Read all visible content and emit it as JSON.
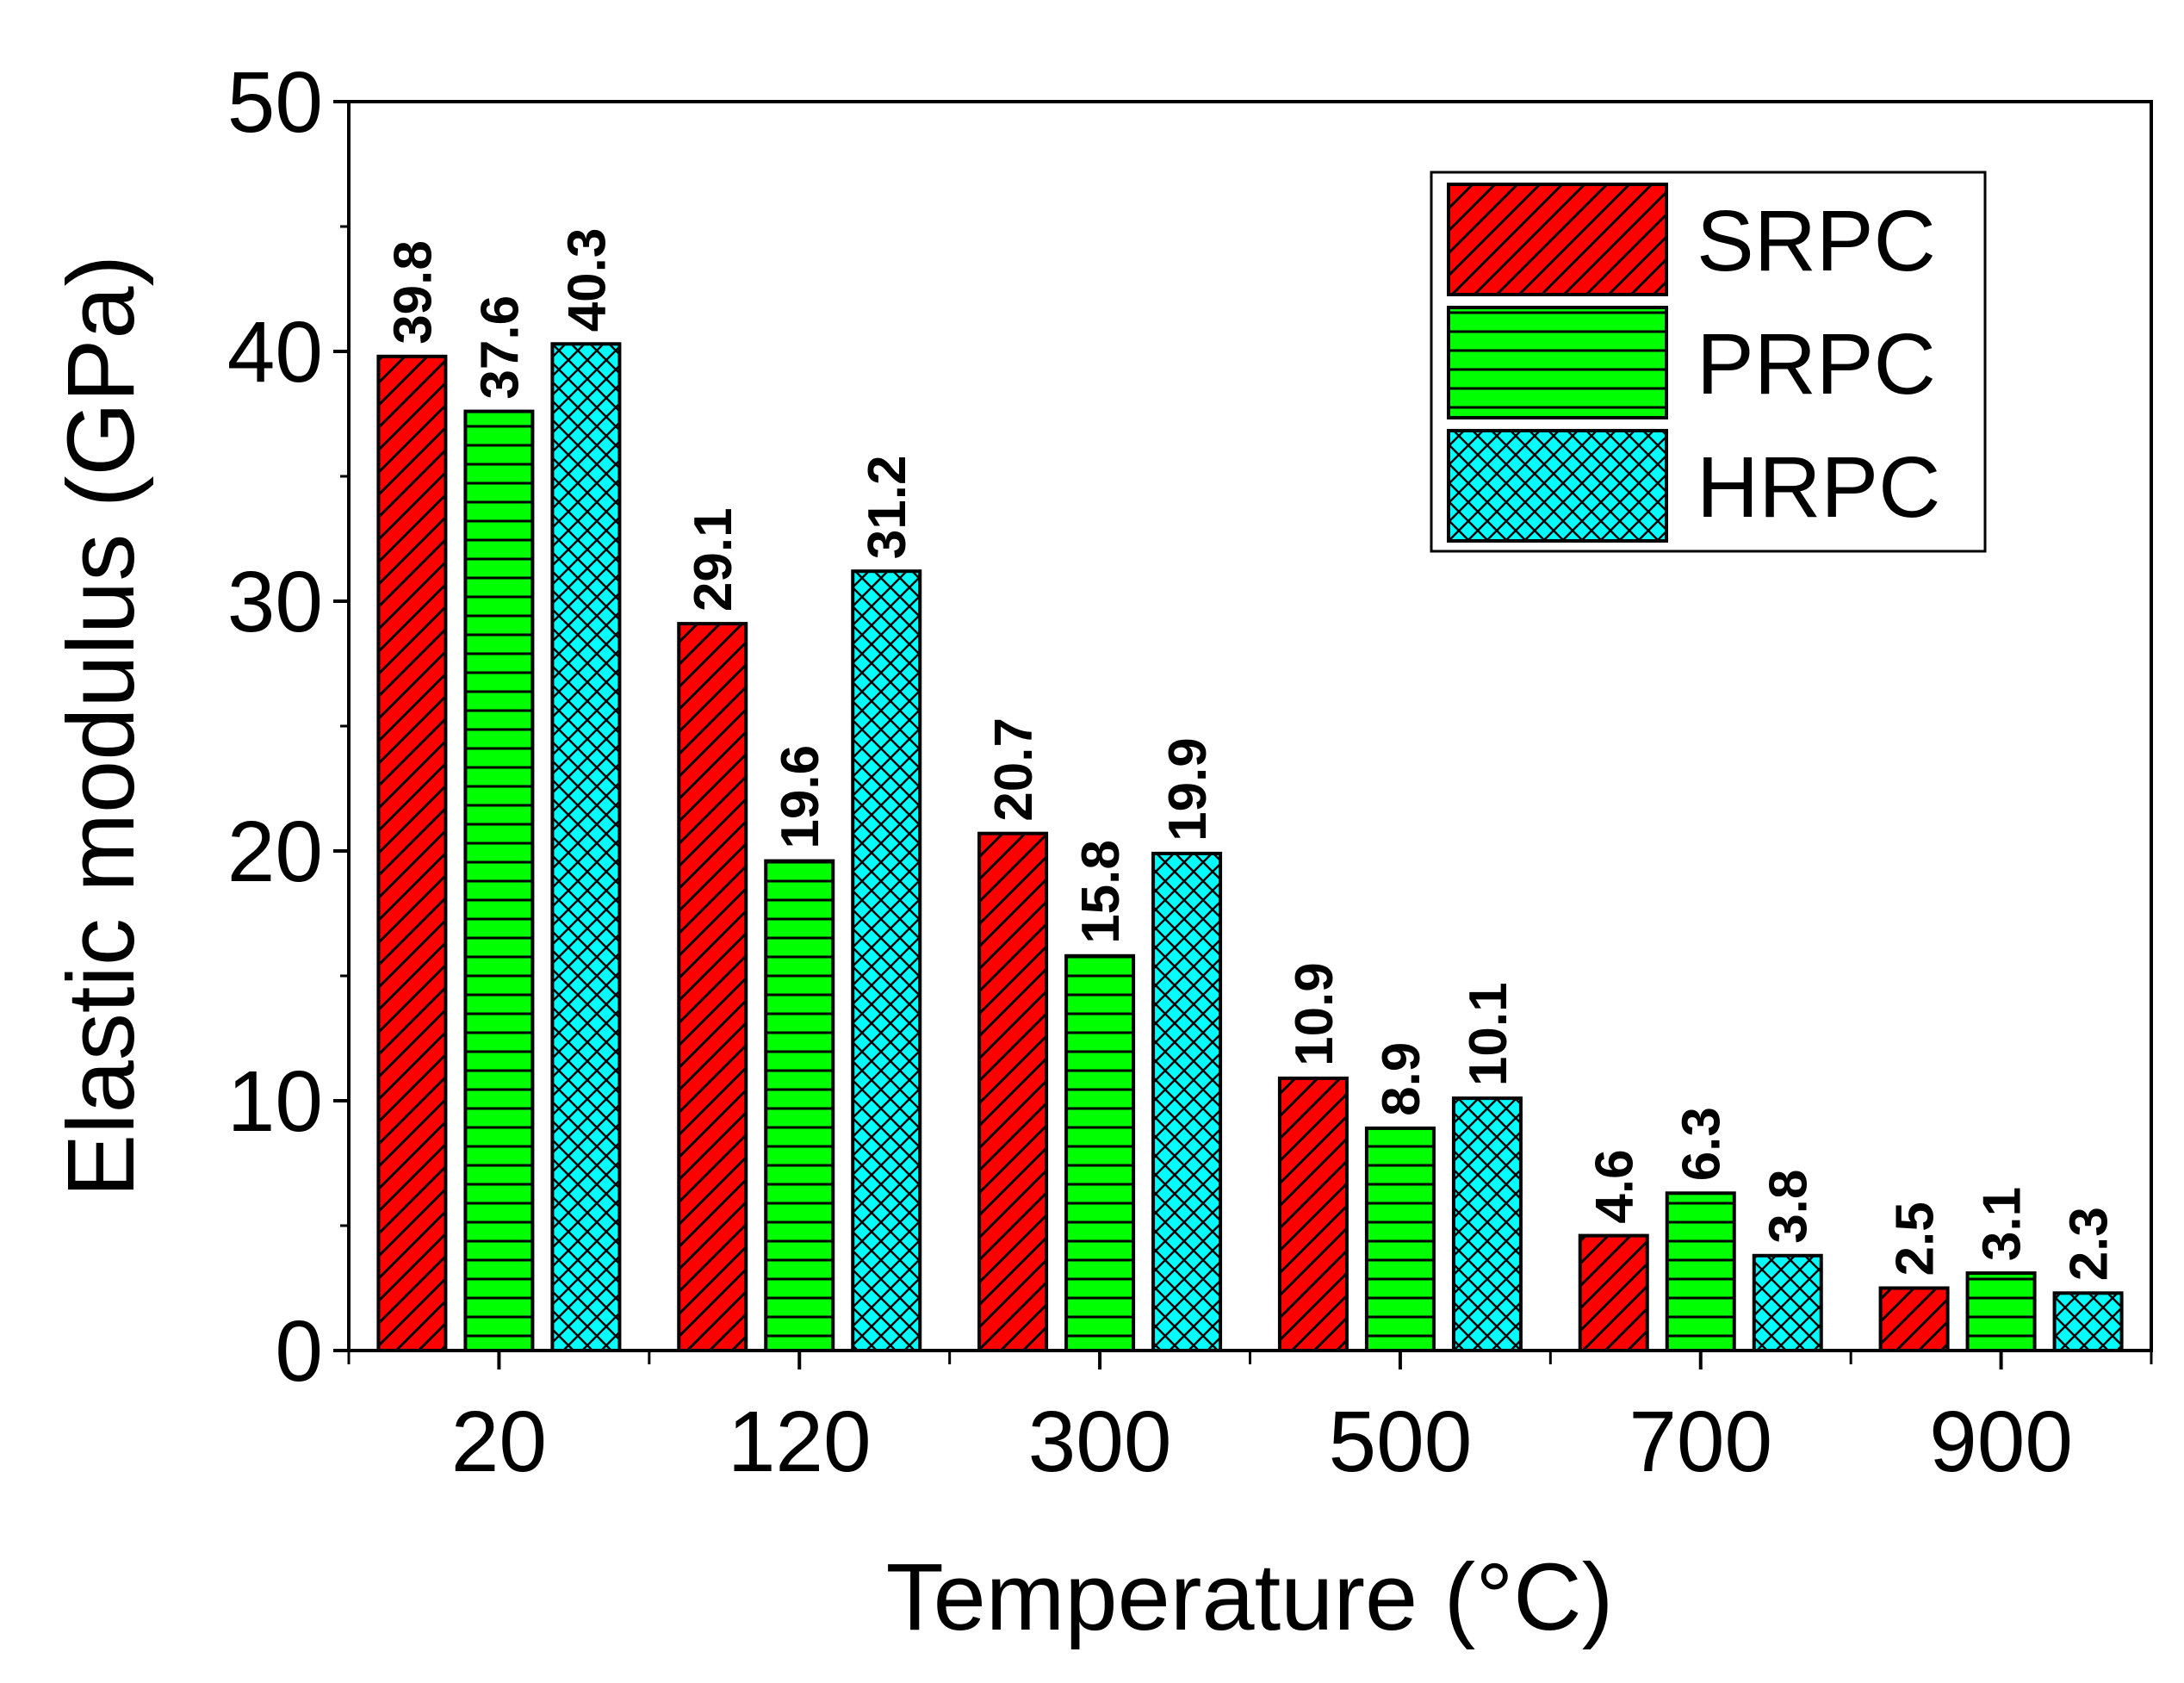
{
  "chart_data": {
    "type": "bar",
    "title": "",
    "xlabel": "Temperature (°C)",
    "ylabel": "Elastic modulus (GPa)",
    "categories": [
      "20",
      "120",
      "300",
      "500",
      "700",
      "900"
    ],
    "ylim": [
      0,
      50
    ],
    "yticks": [
      0,
      10,
      20,
      30,
      40,
      50
    ],
    "ytick_labels": [
      "0",
      "10",
      "20",
      "30",
      "40",
      "50"
    ],
    "grid": false,
    "legend_position": "top-right",
    "series": [
      {
        "name": "SRPC",
        "color": "#ff0000",
        "pattern": "diagonal-hatch",
        "values": [
          39.8,
          29.1,
          20.7,
          10.9,
          4.6,
          2.5
        ],
        "labels": [
          "39.8",
          "29.1",
          "20.7",
          "10.9",
          "4.6",
          "2.5"
        ]
      },
      {
        "name": "PRPC",
        "color": "#00ff00",
        "pattern": "horizontal-lines",
        "values": [
          37.6,
          19.6,
          15.8,
          8.9,
          6.3,
          3.1
        ],
        "labels": [
          "37.6",
          "19.6",
          "15.8",
          "8.9",
          "6.3",
          "3.1"
        ]
      },
      {
        "name": "HRPC",
        "color": "#00ffff",
        "pattern": "crosshatch",
        "values": [
          40.3,
          31.2,
          19.9,
          10.1,
          3.8,
          2.3
        ],
        "labels": [
          "40.3",
          "31.2",
          "19.9",
          "10.1",
          "3.8",
          "2.3"
        ]
      }
    ]
  }
}
